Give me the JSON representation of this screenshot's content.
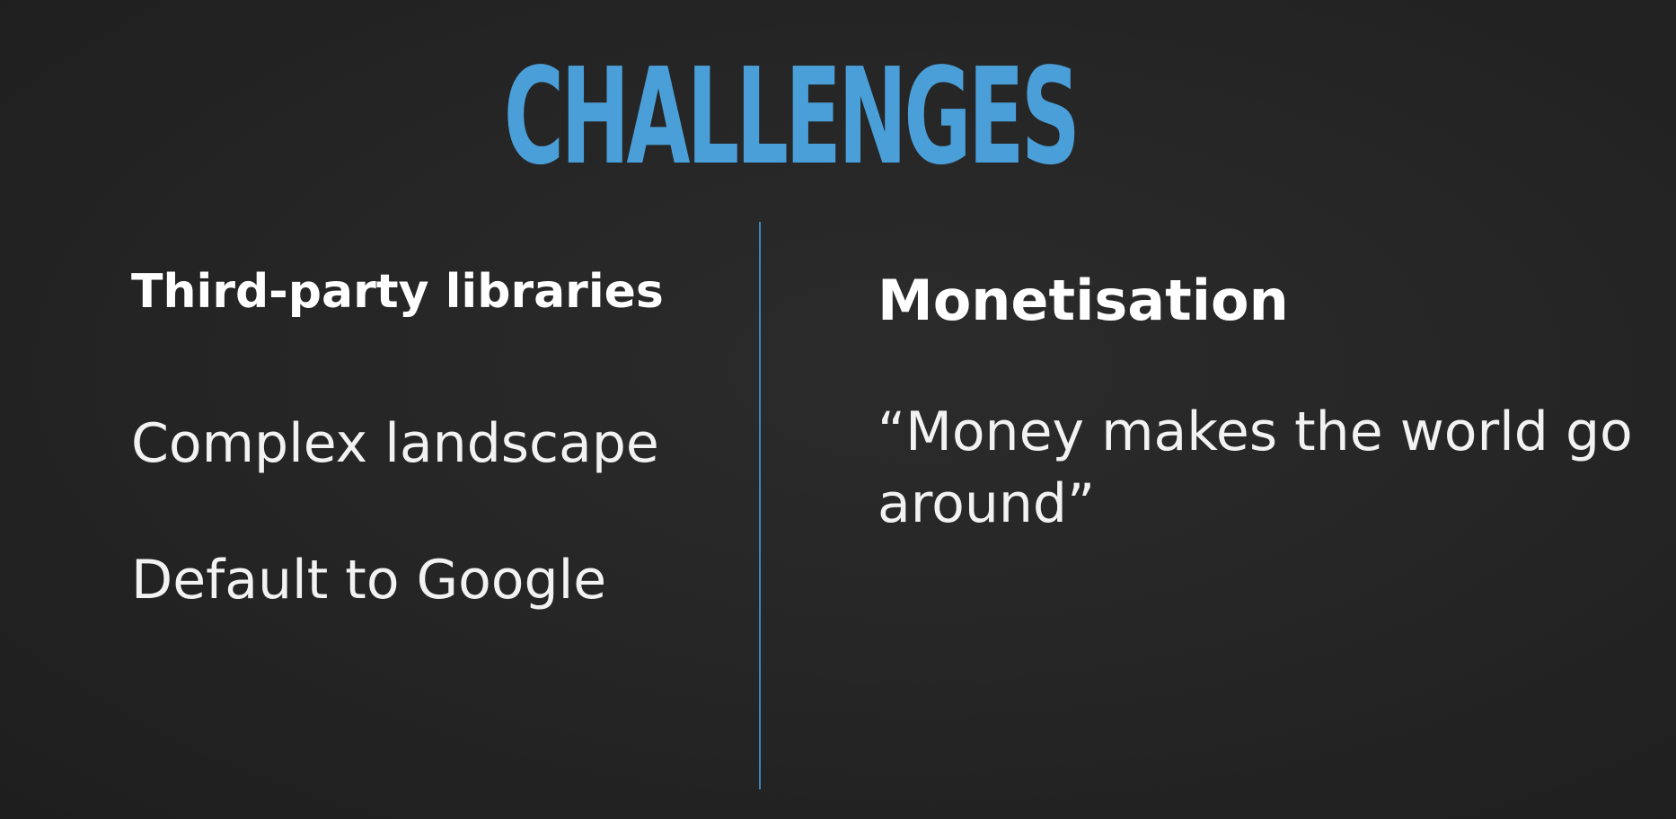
{
  "slide": {
    "title": "CHALLENGES",
    "left_column": {
      "heading": "Third-party libraries",
      "items": [
        "Complex landscape",
        "Default to Google"
      ]
    },
    "right_column": {
      "heading": "Monetisation",
      "quote": "“Money makes the world go around”"
    }
  },
  "colors": {
    "title": "#4a9fd8",
    "divider": "#3f86b8",
    "background": "#232323",
    "text": "#ffffff"
  }
}
